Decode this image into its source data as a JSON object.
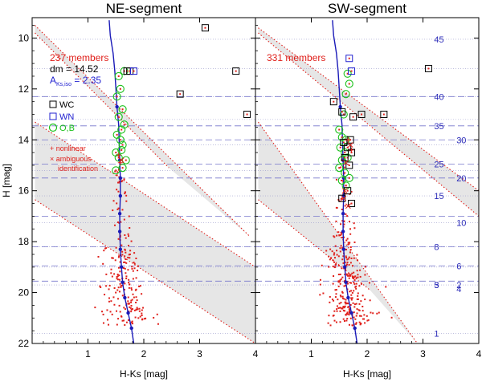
{
  "colors": {
    "red": "#e0201b",
    "blue": "#1a1ab8",
    "green": "#18c018",
    "band": "#e6e6e6",
    "dash": "#7777cc"
  },
  "chart_data": {
    "type": "scatter",
    "xlabel": "H-Ks [mag]",
    "ylabel": "H [mag]",
    "xlim": [
      0,
      4
    ],
    "ylim": [
      22,
      9.2
    ],
    "xticks": [
      1,
      2,
      3,
      4
    ],
    "yticks": [
      10,
      12,
      14,
      16,
      18,
      20,
      22
    ],
    "panels": [
      {
        "id": "ne",
        "title": "NE-segment",
        "members_label": "237 members",
        "dm_label": "dm = 14.52",
        "aks_label": "A",
        "aks_sub": "Ks,iso",
        "aks_value": " = 2.35",
        "legend": {
          "wc": "WC",
          "wn": "WN",
          "ob": "O,B",
          "nonlinear": "+ nonlinear",
          "ambiguous": "× ambiguous",
          "identification": "identification"
        },
        "band": {
          "lower_red": [
            [
              0.05,
              16.35
            ],
            [
              4.0,
              22.0
            ]
          ],
          "upper_red": [
            [
              0.05,
              13.3
            ],
            [
              4.0,
              19.0
            ]
          ],
          "top_red": [
            [
              0.05,
              9.8
            ],
            [
              2.45,
              15.1
            ]
          ],
          "top_lower": [
            [
              0.05,
              9.5
            ],
            [
              3.9,
              17.8
            ]
          ]
        },
        "massl": [],
        "wc": [
          [
            3.1,
            9.6
          ],
          [
            3.65,
            11.3
          ],
          [
            3.85,
            13.0
          ],
          [
            2.65,
            12.2
          ],
          [
            1.7,
            11.3
          ],
          [
            1.75,
            11.3
          ]
        ],
        "wn": [
          [
            1.82,
            11.3
          ]
        ],
        "ob": [
          [
            1.55,
            11.5
          ],
          [
            1.65,
            11.3
          ],
          [
            1.52,
            12.3
          ],
          [
            1.58,
            12.0
          ],
          [
            1.62,
            12.8
          ],
          [
            1.55,
            13.1
          ],
          [
            1.6,
            13.6
          ],
          [
            1.52,
            13.8
          ],
          [
            1.58,
            14.0
          ],
          [
            1.62,
            14.2
          ],
          [
            1.5,
            14.5
          ],
          [
            1.6,
            14.4
          ],
          [
            1.68,
            14.8
          ],
          [
            1.55,
            14.7
          ],
          [
            1.62,
            15.1
          ],
          [
            1.5,
            15.2
          ],
          [
            1.65,
            13.4
          ]
        ],
        "nonlinear": [
          [
            1.55,
            14.6
          ],
          [
            1.58,
            14.9
          ]
        ],
        "ambiguous": [
          [
            1.6,
            14.8
          ]
        ],
        "members_n": 220,
        "members_seed": 7
      },
      {
        "id": "sw",
        "title": "SW-segment",
        "members_label": "331 members",
        "band": {
          "lower_red": [
            [
              0.05,
              16.35
            ],
            [
              2.05,
              19.9
            ]
          ],
          "upper_red": [
            [
              0.05,
              13.3
            ],
            [
              2.9,
              22.0
            ]
          ],
          "top_red": [
            [
              0.05,
              9.8
            ],
            [
              4.0,
              17.0
            ]
          ],
          "top_lower": [
            [
              0.05,
              9.6
            ],
            [
              4.0,
              16.0
            ]
          ]
        },
        "massl": [
          "45",
          "40",
          "35",
          "30",
          "25",
          "20",
          "15",
          "10",
          "8",
          "6",
          "5",
          "4",
          "3",
          "2",
          "1"
        ],
        "massl_h": [
          10.05,
          12.3,
          13.45,
          14.0,
          14.95,
          15.5,
          16.2,
          17.25,
          18.2,
          18.95,
          19.7,
          19.85,
          19.7,
          19.7,
          21.6
        ],
        "massl_x": [
          3.2,
          3.2,
          3.2,
          3.6,
          3.2,
          3.6,
          3.2,
          3.6,
          3.2,
          3.6,
          3.2,
          3.6,
          3.2,
          3.6,
          3.2
        ],
        "wc": [
          [
            3.1,
            11.2
          ],
          [
            2.3,
            13.0
          ],
          [
            1.75,
            13.1
          ],
          [
            1.9,
            13.0
          ],
          [
            1.4,
            12.5
          ],
          [
            1.55,
            12.9
          ],
          [
            1.65,
            14.3
          ],
          [
            1.72,
            14.5
          ],
          [
            1.6,
            14.7
          ],
          [
            1.68,
            15.0
          ],
          [
            1.55,
            16.3
          ],
          [
            1.65,
            16.0
          ],
          [
            1.72,
            16.5
          ],
          [
            1.7,
            14.0
          ],
          [
            1.58,
            14.1
          ]
        ],
        "wn": [
          [
            1.68,
            10.8
          ],
          [
            1.72,
            11.3
          ]
        ],
        "ob": [
          [
            1.65,
            11.4
          ],
          [
            1.68,
            11.8
          ],
          [
            1.62,
            12.2
          ],
          [
            1.58,
            13.0
          ],
          [
            1.5,
            13.6
          ],
          [
            1.55,
            13.9
          ],
          [
            1.62,
            14.0
          ],
          [
            1.52,
            14.3
          ],
          [
            1.6,
            14.5
          ],
          [
            1.55,
            14.8
          ],
          [
            1.65,
            14.7
          ],
          [
            1.5,
            15.1
          ],
          [
            1.6,
            15.3
          ],
          [
            1.68,
            15.5
          ],
          [
            1.55,
            15.6
          ],
          [
            1.62,
            15.8
          ]
        ],
        "nonlinear": [
          [
            1.66,
            14.0
          ],
          [
            1.72,
            14.4
          ]
        ],
        "ambiguous": [
          [
            1.7,
            14.2
          ],
          [
            1.62,
            14.9
          ],
          [
            1.58,
            16.3
          ],
          [
            1.66,
            16.6
          ],
          [
            1.6,
            16.0
          ]
        ],
        "members_n": 300,
        "members_seed": 13
      }
    ],
    "isochrone": [
      [
        1.38,
        9.3
      ],
      [
        1.4,
        9.9
      ],
      [
        1.45,
        10.6
      ],
      [
        1.48,
        11.3
      ],
      [
        1.5,
        12.0
      ],
      [
        1.52,
        12.7
      ],
      [
        1.55,
        13.4
      ],
      [
        1.56,
        14.1
      ],
      [
        1.57,
        14.8
      ],
      [
        1.58,
        15.5
      ],
      [
        1.58,
        16.2
      ],
      [
        1.57,
        16.9
      ],
      [
        1.57,
        17.6
      ],
      [
        1.58,
        18.3
      ],
      [
        1.6,
        19.0
      ],
      [
        1.62,
        19.6
      ],
      [
        1.66,
        20.2
      ],
      [
        1.72,
        20.8
      ],
      [
        1.78,
        21.4
      ],
      [
        1.82,
        22.0
      ]
    ],
    "isochrone_dots": [
      [
        1.52,
        12.7
      ],
      [
        1.57,
        14.8
      ],
      [
        1.58,
        15.5
      ],
      [
        1.58,
        16.2
      ],
      [
        1.57,
        16.9
      ],
      [
        1.57,
        17.6
      ],
      [
        1.58,
        18.3
      ],
      [
        1.6,
        19.0
      ],
      [
        1.62,
        19.6
      ],
      [
        1.66,
        20.2
      ],
      [
        1.72,
        20.8
      ],
      [
        1.78,
        21.4
      ]
    ],
    "blue_dash_h": [
      12.3,
      13.45,
      14.0,
      14.95,
      15.5,
      17.0,
      18.2,
      18.95,
      19.55
    ],
    "gray_dot_h": [
      10.05,
      11.2,
      12.3,
      13.2,
      14.2,
      15.2,
      16.2,
      17.25,
      18.2,
      19.0,
      19.7,
      21.6
    ]
  }
}
